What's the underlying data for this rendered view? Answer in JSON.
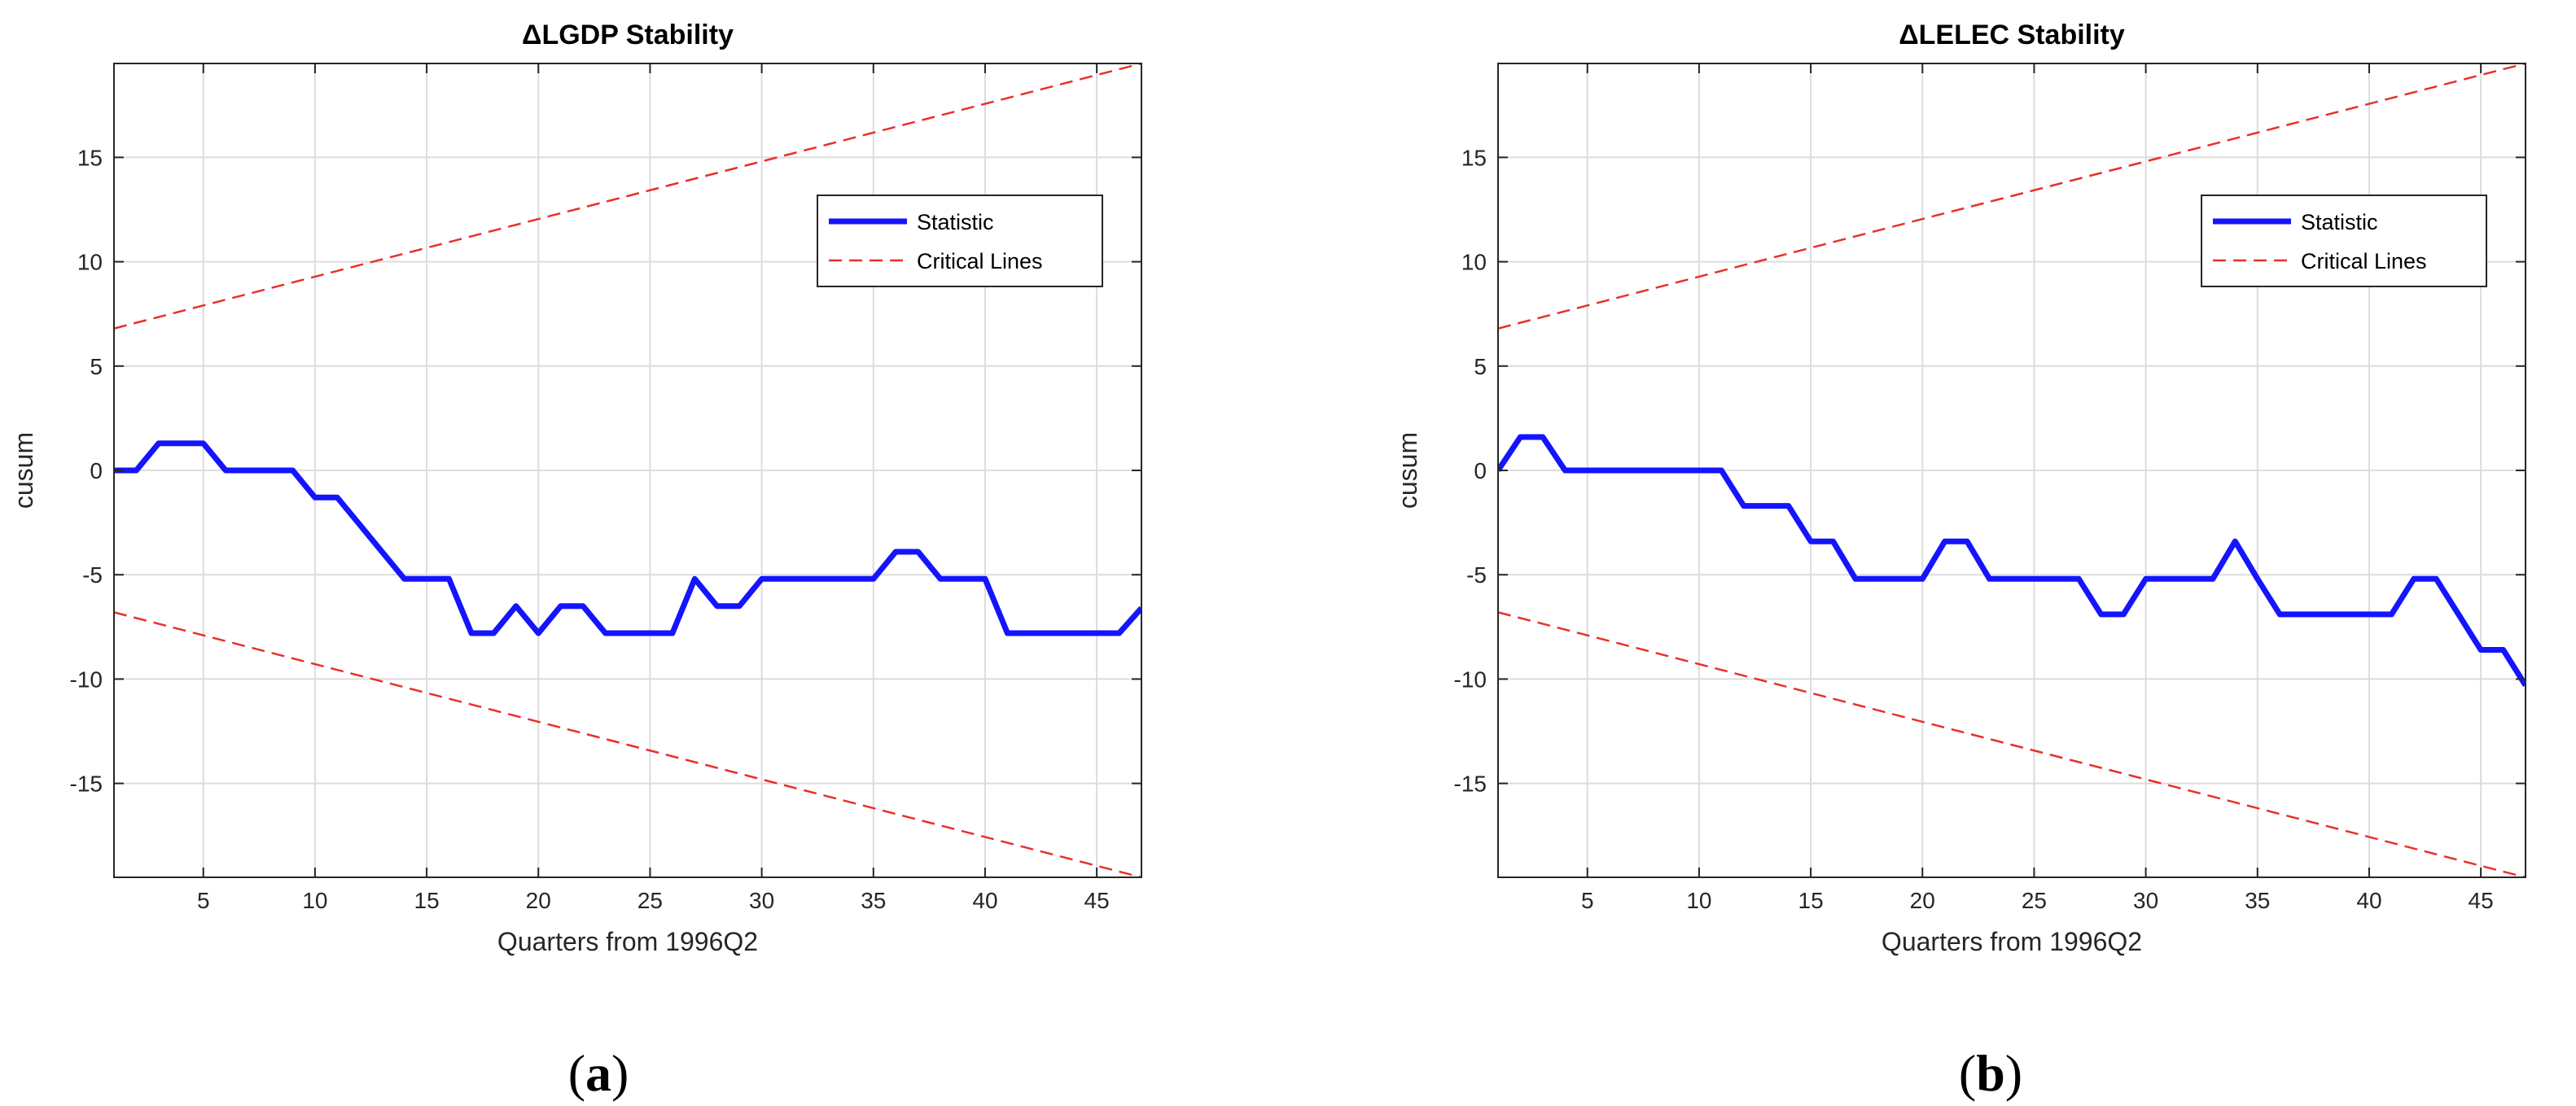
{
  "chart_data": [
    {
      "type": "line",
      "title": "ΔLGDP Stability",
      "xlabel": "Quarters from 1996Q2",
      "ylabel": "cusum",
      "xlim": [
        1,
        47
      ],
      "ylim": [
        -19.5,
        19.5
      ],
      "xticks": [
        5,
        10,
        15,
        20,
        25,
        30,
        35,
        40,
        45
      ],
      "yticks": [
        15,
        10,
        5,
        0,
        -5,
        -10,
        -15
      ],
      "grid": true,
      "legend_position": "top-right",
      "caption": {
        "open": "(",
        "letter": "a",
        "close": ")"
      },
      "series": [
        {
          "name": "Statistic",
          "color": "#1414ff",
          "style": "solid",
          "x": [
            1,
            2,
            3,
            4,
            5,
            6,
            7,
            8,
            9,
            10,
            11,
            12,
            13,
            14,
            15,
            16,
            17,
            18,
            19,
            20,
            21,
            22,
            23,
            24,
            25,
            26,
            27,
            28,
            29,
            30,
            31,
            32,
            33,
            34,
            35,
            36,
            37,
            38,
            39,
            40,
            41,
            42,
            43,
            44,
            45,
            46,
            47
          ],
          "values": [
            0,
            0,
            1.3,
            1.3,
            1.3,
            0,
            0,
            0,
            0,
            -1.3,
            -1.3,
            -2.6,
            -3.9,
            -5.2,
            -5.2,
            -5.2,
            -7.8,
            -7.8,
            -6.5,
            -7.8,
            -6.5,
            -6.5,
            -7.8,
            -7.8,
            -7.8,
            -7.8,
            -5.2,
            -6.5,
            -6.5,
            -5.2,
            -5.2,
            -5.2,
            -5.2,
            -5.2,
            -5.2,
            -3.9,
            -3.9,
            -5.2,
            -5.2,
            -5.2,
            -7.8,
            -7.8,
            -7.8,
            -7.8,
            -7.8,
            -7.8,
            -6.6
          ]
        },
        {
          "name": "Critical Lines",
          "color": "#e8302a",
          "style": "dashed",
          "upper": {
            "x": [
              1,
              47
            ],
            "values": [
              6.8,
              19.5
            ]
          },
          "lower": {
            "x": [
              1,
              47
            ],
            "values": [
              -6.8,
              -19.5
            ]
          }
        }
      ]
    },
    {
      "type": "line",
      "title": "ΔLELEC Stability",
      "xlabel": "Quarters from 1996Q2",
      "ylabel": "cusum",
      "xlim": [
        1,
        47
      ],
      "ylim": [
        -19.5,
        19.5
      ],
      "xticks": [
        5,
        10,
        15,
        20,
        25,
        30,
        35,
        40,
        45
      ],
      "yticks": [
        15,
        10,
        5,
        0,
        -5,
        -10,
        -15
      ],
      "grid": true,
      "legend_position": "top-right",
      "caption": {
        "open": "(",
        "letter": "b",
        "close": ")"
      },
      "series": [
        {
          "name": "Statistic",
          "color": "#1414ff",
          "style": "solid",
          "x": [
            1,
            2,
            3,
            4,
            5,
            6,
            7,
            8,
            9,
            10,
            11,
            12,
            13,
            14,
            15,
            16,
            17,
            18,
            19,
            20,
            21,
            22,
            23,
            24,
            25,
            26,
            27,
            28,
            29,
            30,
            31,
            32,
            33,
            34,
            35,
            36,
            37,
            38,
            39,
            40,
            41,
            42,
            43,
            44,
            45,
            46,
            47
          ],
          "values": [
            0,
            1.6,
            1.6,
            0,
            0,
            0,
            0,
            0,
            0,
            0,
            0,
            -1.7,
            -1.7,
            -1.7,
            -3.4,
            -3.4,
            -5.2,
            -5.2,
            -5.2,
            -5.2,
            -3.4,
            -3.4,
            -5.2,
            -5.2,
            -5.2,
            -5.2,
            -5.2,
            -6.9,
            -6.9,
            -5.2,
            -5.2,
            -5.2,
            -5.2,
            -3.4,
            -5.2,
            -6.9,
            -6.9,
            -6.9,
            -6.9,
            -6.9,
            -6.9,
            -5.2,
            -5.2,
            -6.9,
            -8.6,
            -8.6,
            -10.3
          ]
        },
        {
          "name": "Critical Lines",
          "color": "#e8302a",
          "style": "dashed",
          "upper": {
            "x": [
              1,
              47
            ],
            "values": [
              6.8,
              19.5
            ]
          },
          "lower": {
            "x": [
              1,
              47
            ],
            "values": [
              -6.8,
              -19.5
            ]
          }
        }
      ]
    }
  ]
}
